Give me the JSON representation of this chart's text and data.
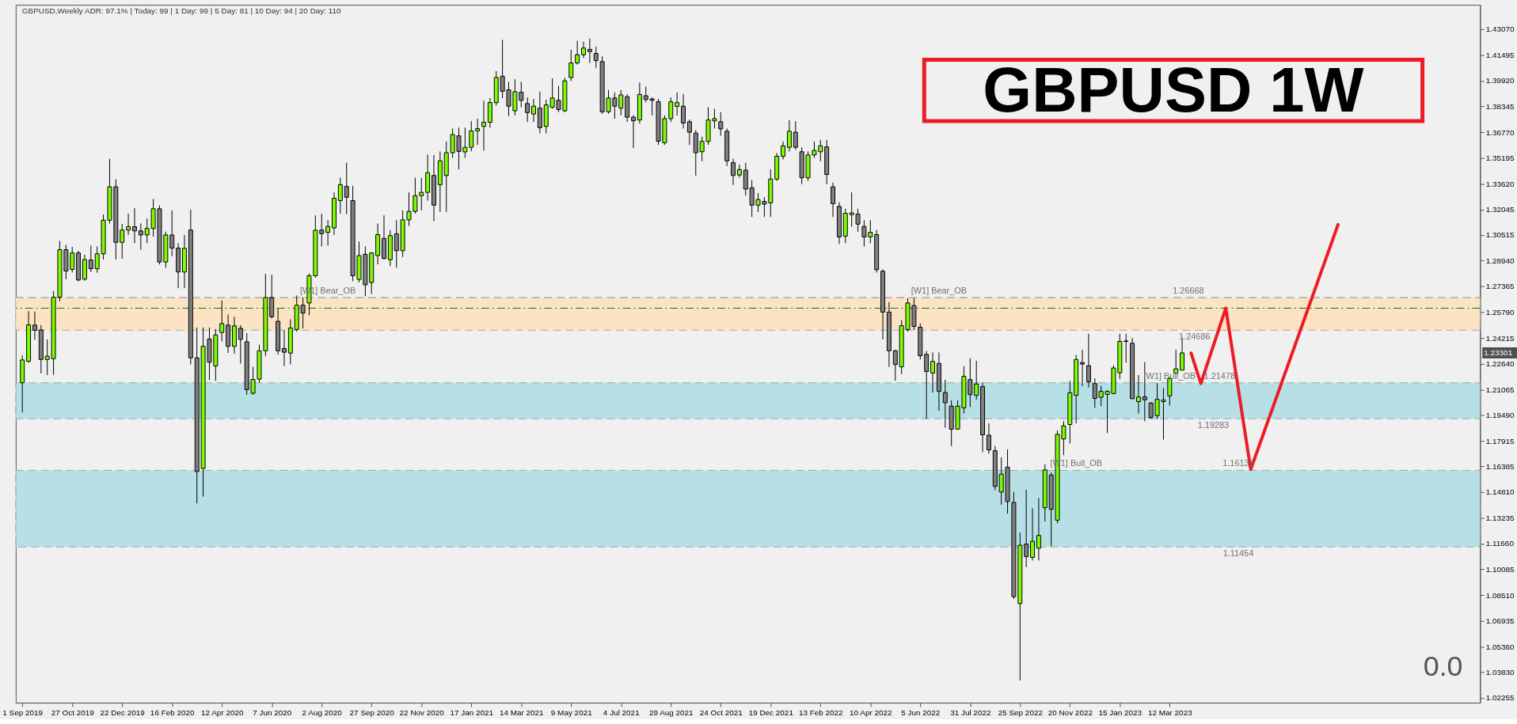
{
  "chart_data": {
    "type": "candlestick",
    "title": "GBPUSD 1W",
    "subtitle": "GBPUSD,Weekly   ADR: 97.1%   |  Today: 99   |  1 Day: 99   |  5 Day: 81   |  10 Day: 94   |  20 Day: 110",
    "x": [
      "2019-09-01",
      "2019-09-08",
      "2019-09-15",
      "2019-09-22",
      "2019-09-29",
      "2019-10-06",
      "2019-10-13",
      "2019-10-20",
      "2019-10-27",
      "2019-11-03",
      "2019-11-10",
      "2019-11-17",
      "2019-11-24",
      "2019-12-01",
      "2019-12-08",
      "2019-12-15",
      "2019-12-22",
      "2019-12-29",
      "2020-01-05",
      "2020-01-12",
      "2020-01-19",
      "2020-01-26",
      "2020-02-02",
      "2020-02-09",
      "2020-02-16",
      "2020-02-23",
      "2020-03-01",
      "2020-03-08",
      "2020-03-15",
      "2020-03-22",
      "2020-03-29",
      "2020-04-05",
      "2020-04-12",
      "2020-04-19",
      "2020-04-26",
      "2020-05-03",
      "2020-05-10",
      "2020-05-17",
      "2020-05-24",
      "2020-05-31",
      "2020-06-07",
      "2020-06-14",
      "2020-06-21",
      "2020-06-28",
      "2020-07-05",
      "2020-07-12",
      "2020-07-19",
      "2020-07-26",
      "2020-08-02",
      "2020-08-09",
      "2020-08-16",
      "2020-08-23",
      "2020-08-30",
      "2020-09-06",
      "2020-09-13",
      "2020-09-20",
      "2020-09-27",
      "2020-10-04",
      "2020-10-11",
      "2020-10-18",
      "2020-10-25",
      "2020-11-01",
      "2020-11-08",
      "2020-11-15",
      "2020-11-22",
      "2020-11-29",
      "2020-12-06",
      "2020-12-13",
      "2020-12-20",
      "2020-12-27",
      "2021-01-03",
      "2021-01-10",
      "2021-01-17",
      "2021-01-24",
      "2021-01-31",
      "2021-02-07",
      "2021-02-14",
      "2021-02-21",
      "2021-02-28",
      "2021-03-07",
      "2021-03-14",
      "2021-03-21",
      "2021-03-28",
      "2021-04-04",
      "2021-04-11",
      "2021-04-18",
      "2021-04-25",
      "2021-05-02",
      "2021-05-09",
      "2021-05-16",
      "2021-05-23",
      "2021-05-30",
      "2021-06-06",
      "2021-06-13",
      "2021-06-20",
      "2021-06-27",
      "2021-07-04",
      "2021-07-11",
      "2021-07-18",
      "2021-07-25",
      "2021-08-01",
      "2021-08-08",
      "2021-08-15",
      "2021-08-22",
      "2021-08-29",
      "2021-09-05",
      "2021-09-12",
      "2021-09-19",
      "2021-09-26",
      "2021-10-03",
      "2021-10-10",
      "2021-10-17",
      "2021-10-24",
      "2021-10-31",
      "2021-11-07",
      "2021-11-14",
      "2021-11-21",
      "2021-11-28",
      "2021-12-05",
      "2021-12-12",
      "2021-12-19",
      "2021-12-26",
      "2022-01-02",
      "2022-01-09",
      "2022-01-16",
      "2022-01-23",
      "2022-01-30",
      "2022-02-06",
      "2022-02-13",
      "2022-02-20",
      "2022-02-27",
      "2022-03-06",
      "2022-03-13",
      "2022-03-20",
      "2022-03-27",
      "2022-04-03",
      "2022-04-10",
      "2022-04-17",
      "2022-04-24",
      "2022-05-01",
      "2022-05-08",
      "2022-05-15",
      "2022-05-22",
      "2022-05-29",
      "2022-06-05",
      "2022-06-12",
      "2022-06-19",
      "2022-06-26",
      "2022-07-03",
      "2022-07-10",
      "2022-07-17",
      "2022-07-24",
      "2022-07-31",
      "2022-08-07",
      "2022-08-14",
      "2022-08-21",
      "2022-08-28",
      "2022-09-04",
      "2022-09-11",
      "2022-09-18",
      "2022-09-25",
      "2022-10-02",
      "2022-10-09",
      "2022-10-16",
      "2022-10-23",
      "2022-10-30",
      "2022-11-06",
      "2022-11-13",
      "2022-11-20",
      "2022-11-27",
      "2022-12-04",
      "2022-12-11",
      "2022-12-18",
      "2022-12-25",
      "2023-01-01",
      "2023-01-08",
      "2023-01-15",
      "2023-01-22",
      "2023-01-29",
      "2023-02-05",
      "2023-02-12",
      "2023-02-19",
      "2023-02-26",
      "2023-03-05",
      "2023-03-12",
      "2023-03-19",
      "2023-03-26"
    ],
    "ohlc": [
      [
        1.2148,
        1.2315,
        1.1967,
        1.2287
      ],
      [
        1.2279,
        1.2585,
        1.227,
        1.2501
      ],
      [
        1.25,
        1.2582,
        1.241,
        1.2468
      ],
      [
        1.247,
        1.25,
        1.2205,
        1.229
      ],
      [
        1.229,
        1.2412,
        1.2195,
        1.231
      ],
      [
        1.2295,
        1.2708,
        1.2196,
        1.267
      ],
      [
        1.267,
        1.3013,
        1.2645,
        1.296
      ],
      [
        1.296,
        1.299,
        1.278,
        1.283
      ],
      [
        1.284,
        1.2977,
        1.2821,
        1.294
      ],
      [
        1.294,
        1.2953,
        1.2768,
        1.2775
      ],
      [
        1.278,
        1.293,
        1.277,
        1.29
      ],
      [
        1.2897,
        1.2985,
        1.2823,
        1.2844
      ],
      [
        1.2844,
        1.298,
        1.282,
        1.2935
      ],
      [
        1.2935,
        1.3175,
        1.29,
        1.314
      ],
      [
        1.314,
        1.3514,
        1.312,
        1.3344
      ],
      [
        1.3344,
        1.339,
        1.29,
        1.3005
      ],
      [
        1.3005,
        1.3118,
        1.2905,
        1.308
      ],
      [
        1.308,
        1.318,
        1.305,
        1.31
      ],
      [
        1.31,
        1.3215,
        1.3,
        1.3075
      ],
      [
        1.3075,
        1.312,
        1.296,
        1.305
      ],
      [
        1.305,
        1.315,
        1.3,
        1.309
      ],
      [
        1.309,
        1.327,
        1.304,
        1.321
      ],
      [
        1.321,
        1.323,
        1.287,
        1.2885
      ],
      [
        1.2885,
        1.307,
        1.285,
        1.305
      ],
      [
        1.305,
        1.32,
        1.292,
        1.297
      ],
      [
        1.297,
        1.3,
        1.2725,
        1.2824
      ],
      [
        1.2824,
        1.305,
        1.2725,
        1.2968
      ],
      [
        1.308,
        1.3205,
        1.226,
        1.23
      ],
      [
        1.23,
        1.2485,
        1.1411,
        1.1606
      ],
      [
        1.1625,
        1.2485,
        1.1453,
        1.237
      ],
      [
        1.2415,
        1.2485,
        1.2165,
        1.2273
      ],
      [
        1.225,
        1.2475,
        1.216,
        1.244
      ],
      [
        1.2455,
        1.265,
        1.24,
        1.2509
      ],
      [
        1.25,
        1.2565,
        1.233,
        1.237
      ],
      [
        1.237,
        1.255,
        1.2325,
        1.2495
      ],
      [
        1.248,
        1.25,
        1.2265,
        1.2413
      ],
      [
        1.2398,
        1.245,
        1.2075,
        1.2106
      ],
      [
        1.2084,
        1.2245,
        1.2075,
        1.2168
      ],
      [
        1.217,
        1.238,
        1.215,
        1.2343
      ],
      [
        1.2343,
        1.2812,
        1.231,
        1.2668
      ],
      [
        1.2668,
        1.2807,
        1.254,
        1.2551
      ],
      [
        1.2523,
        1.26,
        1.232,
        1.2343
      ],
      [
        1.2357,
        1.247,
        1.225,
        1.2334
      ],
      [
        1.2329,
        1.2535,
        1.226,
        1.2482
      ],
      [
        1.2473,
        1.268,
        1.246,
        1.2621
      ],
      [
        1.2621,
        1.267,
        1.248,
        1.2573
      ],
      [
        1.2635,
        1.2815,
        1.256,
        1.2801
      ],
      [
        1.2801,
        1.317,
        1.279,
        1.3079
      ],
      [
        1.308,
        1.318,
        1.298,
        1.3058
      ],
      [
        1.3066,
        1.314,
        1.2985,
        1.3102
      ],
      [
        1.3093,
        1.331,
        1.305,
        1.3274
      ],
      [
        1.326,
        1.34,
        1.318,
        1.3357
      ],
      [
        1.3346,
        1.3491,
        1.3177,
        1.328
      ],
      [
        1.326,
        1.335,
        1.2768,
        1.2801
      ],
      [
        1.2779,
        1.301,
        1.276,
        1.2924
      ],
      [
        1.2932,
        1.298,
        1.2676,
        1.2746
      ],
      [
        1.276,
        1.2945,
        1.269,
        1.294
      ],
      [
        1.2924,
        1.312,
        1.287,
        1.3052
      ],
      [
        1.3029,
        1.317,
        1.29,
        1.2907
      ],
      [
        1.2899,
        1.308,
        1.286,
        1.3046
      ],
      [
        1.3057,
        1.314,
        1.285,
        1.2954
      ],
      [
        1.2954,
        1.32,
        1.2915,
        1.3142
      ],
      [
        1.3142,
        1.331,
        1.3105,
        1.3194
      ],
      [
        1.3194,
        1.34,
        1.318,
        1.329
      ],
      [
        1.329,
        1.3398,
        1.32,
        1.331
      ],
      [
        1.331,
        1.354,
        1.326,
        1.343
      ],
      [
        1.3413,
        1.3538,
        1.3135,
        1.3232
      ],
      [
        1.3357,
        1.356,
        1.3191,
        1.3502
      ],
      [
        1.3413,
        1.362,
        1.3191,
        1.3552
      ],
      [
        1.3552,
        1.37,
        1.352,
        1.3663
      ],
      [
        1.3655,
        1.3705,
        1.345,
        1.356
      ],
      [
        1.3557,
        1.3705,
        1.352,
        1.3585
      ],
      [
        1.3585,
        1.3745,
        1.356,
        1.3685
      ],
      [
        1.3685,
        1.376,
        1.36,
        1.3699
      ],
      [
        1.3713,
        1.387,
        1.3565,
        1.3738
      ],
      [
        1.3738,
        1.3885,
        1.3705,
        1.3858
      ],
      [
        1.3858,
        1.405,
        1.384,
        1.4011
      ],
      [
        1.4019,
        1.4241,
        1.3885,
        1.3927
      ],
      [
        1.3936,
        1.3985,
        1.3775,
        1.3836
      ],
      [
        1.3808,
        1.4,
        1.378,
        1.3924
      ],
      [
        1.3921,
        1.3985,
        1.383,
        1.3872
      ],
      [
        1.3852,
        1.389,
        1.374,
        1.3797
      ],
      [
        1.3788,
        1.388,
        1.374,
        1.3836
      ],
      [
        1.3824,
        1.3925,
        1.367,
        1.3705
      ],
      [
        1.3713,
        1.3875,
        1.367,
        1.3844
      ],
      [
        1.383,
        1.4005,
        1.382,
        1.3886
      ],
      [
        1.3872,
        1.396,
        1.38,
        1.3816
      ],
      [
        1.3808,
        1.401,
        1.38,
        1.3991
      ],
      [
        1.4011,
        1.418,
        1.399,
        1.41
      ],
      [
        1.41,
        1.4235,
        1.409,
        1.415
      ],
      [
        1.415,
        1.423,
        1.413,
        1.4191
      ],
      [
        1.4183,
        1.4249,
        1.41,
        1.4169
      ],
      [
        1.4158,
        1.42,
        1.407,
        1.4114
      ],
      [
        1.4108,
        1.414,
        1.379,
        1.3802
      ],
      [
        1.3802,
        1.3935,
        1.379,
        1.3886
      ],
      [
        1.3886,
        1.392,
        1.376,
        1.3836
      ],
      [
        1.3824,
        1.3935,
        1.378,
        1.3905
      ],
      [
        1.3894,
        1.391,
        1.374,
        1.3769
      ],
      [
        1.3769,
        1.378,
        1.358,
        1.3747
      ],
      [
        1.3752,
        1.398,
        1.373,
        1.3908
      ],
      [
        1.39,
        1.3955,
        1.386,
        1.3877
      ],
      [
        1.388,
        1.389,
        1.378,
        1.3872
      ],
      [
        1.3863,
        1.388,
        1.36,
        1.3622
      ],
      [
        1.3613,
        1.378,
        1.36,
        1.376
      ],
      [
        1.376,
        1.389,
        1.374,
        1.3863
      ],
      [
        1.3835,
        1.392,
        1.378,
        1.3858
      ],
      [
        1.3836,
        1.391,
        1.37,
        1.3733
      ],
      [
        1.3741,
        1.3755,
        1.36,
        1.3677
      ],
      [
        1.3672,
        1.369,
        1.3412,
        1.3552
      ],
      [
        1.3558,
        1.365,
        1.35,
        1.3621
      ],
      [
        1.3621,
        1.383,
        1.36,
        1.3752
      ],
      [
        1.3746,
        1.382,
        1.37,
        1.376
      ],
      [
        1.3741,
        1.38,
        1.3655,
        1.3697
      ],
      [
        1.3683,
        1.37,
        1.347,
        1.3502
      ],
      [
        1.3491,
        1.3515,
        1.3355,
        1.3413
      ],
      [
        1.3416,
        1.348,
        1.34,
        1.3449
      ],
      [
        1.3446,
        1.349,
        1.329,
        1.333
      ],
      [
        1.3338,
        1.3385,
        1.316,
        1.3232
      ],
      [
        1.3232,
        1.3305,
        1.319,
        1.3266
      ],
      [
        1.3255,
        1.328,
        1.316,
        1.3238
      ],
      [
        1.3246,
        1.345,
        1.316,
        1.3391
      ],
      [
        1.3391,
        1.355,
        1.338,
        1.353
      ],
      [
        1.353,
        1.362,
        1.351,
        1.3594
      ],
      [
        1.3585,
        1.375,
        1.356,
        1.3683
      ],
      [
        1.3677,
        1.3745,
        1.357,
        1.3585
      ],
      [
        1.3558,
        1.3585,
        1.336,
        1.3399
      ],
      [
        1.3399,
        1.356,
        1.338,
        1.3538
      ],
      [
        1.3538,
        1.362,
        1.352,
        1.3566
      ],
      [
        1.3558,
        1.363,
        1.35,
        1.3594
      ],
      [
        1.3588,
        1.363,
        1.336,
        1.3419
      ],
      [
        1.3344,
        1.337,
        1.316,
        1.3241
      ],
      [
        1.3224,
        1.325,
        1.2995,
        1.3038
      ],
      [
        1.3043,
        1.321,
        1.3,
        1.3182
      ],
      [
        1.3174,
        1.331,
        1.31,
        1.3185
      ],
      [
        1.3177,
        1.321,
        1.307,
        1.3116
      ],
      [
        1.3102,
        1.314,
        1.298,
        1.3038
      ],
      [
        1.3038,
        1.314,
        1.3,
        1.3066
      ],
      [
        1.3052,
        1.308,
        1.282,
        1.2838
      ],
      [
        1.2829,
        1.284,
        1.2412,
        1.2579
      ],
      [
        1.2579,
        1.264,
        1.2245,
        1.2343
      ],
      [
        1.2343,
        1.235,
        1.216,
        1.2259
      ],
      [
        1.2245,
        1.253,
        1.22,
        1.2496
      ],
      [
        1.2473,
        1.2665,
        1.246,
        1.2635
      ],
      [
        1.2619,
        1.2665,
        1.247,
        1.2492
      ],
      [
        1.2487,
        1.251,
        1.229,
        1.2313
      ],
      [
        1.2321,
        1.2342,
        1.1928,
        1.2217
      ],
      [
        1.2207,
        1.2333,
        1.2088,
        1.2278
      ],
      [
        1.2266,
        1.2333,
        1.1976,
        1.2095
      ],
      [
        1.2088,
        1.2167,
        1.1873,
        1.2026
      ],
      [
        1.2005,
        1.204,
        1.1761,
        1.1864
      ],
      [
        1.1865,
        1.204,
        1.186,
        1.2005
      ],
      [
        1.1995,
        1.2249,
        1.196,
        1.2187
      ],
      [
        1.2167,
        1.2297,
        1.2,
        1.2075
      ],
      [
        1.2071,
        1.2282,
        1.2044,
        1.214
      ],
      [
        1.2124,
        1.2151,
        1.1724,
        1.183
      ],
      [
        1.1828,
        1.19,
        1.1714,
        1.1738
      ],
      [
        1.1733,
        1.1762,
        1.1492,
        1.1515
      ],
      [
        1.1481,
        1.1693,
        1.1404,
        1.159
      ],
      [
        1.1633,
        1.1741,
        1.1349,
        1.1423
      ],
      [
        1.1417,
        1.1481,
        1.0828,
        1.0842
      ],
      [
        1.08,
        1.1234,
        1.033,
        1.1156
      ],
      [
        1.1163,
        1.1495,
        1.1022,
        1.1087
      ],
      [
        1.1082,
        1.1381,
        1.1063,
        1.118
      ],
      [
        1.1138,
        1.1444,
        1.1063,
        1.1216
      ],
      [
        1.1385,
        1.165,
        1.1301,
        1.1616
      ],
      [
        1.1585,
        1.16,
        1.115,
        1.1375
      ],
      [
        1.1309,
        1.1857,
        1.129,
        1.1833
      ],
      [
        1.1804,
        1.1913,
        1.1706,
        1.1885
      ],
      [
        1.1893,
        1.2159,
        1.1777,
        1.2087
      ],
      [
        1.2071,
        1.2318,
        1.19,
        1.229
      ],
      [
        1.2271,
        1.2349,
        1.2127,
        1.2262
      ],
      [
        1.2252,
        1.2447,
        1.2119,
        1.2154
      ],
      [
        1.2143,
        1.2175,
        1.1995,
        1.2052
      ],
      [
        1.2059,
        1.213,
        1.2005,
        1.2095
      ],
      [
        1.2077,
        1.2103,
        1.1841,
        1.2095
      ],
      [
        1.2082,
        1.2254,
        1.2079,
        1.2238
      ],
      [
        1.2209,
        1.2447,
        1.217,
        1.24
      ],
      [
        1.2403,
        1.2447,
        1.227,
        1.24
      ],
      [
        1.2389,
        1.2421,
        1.2047,
        1.2051
      ],
      [
        1.2033,
        1.2195,
        1.196,
        1.2061
      ],
      [
        1.2062,
        1.2274,
        1.1913,
        1.2044
      ],
      [
        1.2024,
        1.203,
        1.1928,
        1.1936
      ],
      [
        1.1947,
        1.2147,
        1.1925,
        1.2047
      ],
      [
        1.2033,
        1.2116,
        1.1801,
        1.2042
      ],
      [
        1.2068,
        1.218,
        1.2008,
        1.2174
      ],
      [
        1.2205,
        1.2349,
        1.2205,
        1.2233
      ],
      [
        1.2225,
        1.2424,
        1.2225,
        1.23301
      ]
    ],
    "colors": [
      "#7cfc00",
      "#7cfc00",
      "#808080",
      "#808080",
      "#7cfc00",
      "#7cfc00",
      "#7cfc00",
      "#808080",
      "#7cfc00",
      "#808080",
      "#7cfc00",
      "#808080",
      "#7cfc00",
      "#7cfc00",
      "#7cfc00",
      "#808080",
      "#7cfc00",
      "#7cfc00",
      "#808080",
      "#808080",
      "#7cfc00",
      "#7cfc00",
      "#808080",
      "#7cfc00",
      "#808080",
      "#808080",
      "#7cfc00",
      "#808080",
      "#808080",
      "#7cfc00",
      "#808080",
      "#7cfc00",
      "#7cfc00",
      "#808080",
      "#7cfc00",
      "#808080",
      "#808080",
      "#7cfc00",
      "#7cfc00",
      "#7cfc00",
      "#808080",
      "#808080",
      "#808080",
      "#7cfc00",
      "#7cfc00",
      "#808080",
      "#7cfc00",
      "#7cfc00",
      "#808080",
      "#7cfc00",
      "#7cfc00",
      "#7cfc00",
      "#808080",
      "#808080",
      "#7cfc00",
      "#808080",
      "#7cfc00",
      "#7cfc00",
      "#808080",
      "#7cfc00",
      "#808080",
      "#7cfc00",
      "#7cfc00",
      "#7cfc00",
      "#7cfc00",
      "#7cfc00",
      "#808080",
      "#7cfc00",
      "#7cfc00",
      "#7cfc00",
      "#808080",
      "#7cfc00",
      "#7cfc00",
      "#7cfc00",
      "#7cfc00",
      "#7cfc00",
      "#7cfc00",
      "#808080",
      "#808080",
      "#7cfc00",
      "#808080",
      "#808080",
      "#7cfc00",
      "#808080",
      "#7cfc00",
      "#7cfc00",
      "#808080",
      "#7cfc00",
      "#7cfc00",
      "#7cfc00",
      "#7cfc00",
      "#808080",
      "#808080",
      "#808080",
      "#7cfc00",
      "#808080",
      "#7cfc00",
      "#808080",
      "#808080",
      "#7cfc00",
      "#808080",
      "#808080",
      "#808080",
      "#7cfc00",
      "#7cfc00",
      "#7cfc00",
      "#808080",
      "#808080",
      "#808080",
      "#7cfc00",
      "#7cfc00",
      "#7cfc00",
      "#808080",
      "#808080",
      "#808080",
      "#7cfc00",
      "#808080",
      "#808080",
      "#7cfc00",
      "#808080",
      "#7cfc00",
      "#7cfc00",
      "#7cfc00",
      "#7cfc00",
      "#808080",
      "#808080",
      "#7cfc00",
      "#7cfc00",
      "#7cfc00",
      "#808080",
      "#808080",
      "#808080",
      "#7cfc00",
      "#7cfc00",
      "#808080",
      "#808080",
      "#7cfc00",
      "#808080",
      "#808080",
      "#808080",
      "#808080",
      "#7cfc00",
      "#7cfc00",
      "#808080",
      "#808080",
      "#808080",
      "#7cfc00",
      "#808080",
      "#808080",
      "#808080",
      "#7cfc00",
      "#7cfc00",
      "#808080",
      "#7cfc00",
      "#808080",
      "#808080",
      "#808080",
      "#7cfc00",
      "#808080",
      "#808080",
      "#7cfc00",
      "#808080",
      "#7cfc00",
      "#7cfc00",
      "#7cfc00",
      "#808080",
      "#7cfc00",
      "#7cfc00",
      "#7cfc00",
      "#7cfc00",
      "#808080",
      "#808080",
      "#808080",
      "#7cfc00",
      "#7cfc00",
      "#7cfc00",
      "#7cfc00",
      "#808080",
      "#808080",
      "#7cfc00",
      "#808080",
      "#808080",
      "#7cfc00",
      "#7cfc00",
      "#7cfc00",
      "#7cfc00",
      "#7cfc00"
    ],
    "series": [
      {
        "type": "line",
        "color": "#ed1c24",
        "x": [
          "2023-04-05",
          "2023-04-16",
          "2023-05-14",
          "2023-06-11",
          "2023-09-17"
        ],
        "values": [
          1.2329,
          1.2143,
          1.2603,
          1.1619,
          1.3113
        ]
      }
    ],
    "xlim": [
      "2019-08-29",
      "2024-02-19"
    ],
    "xticks": [
      {
        "value": "2019-09-01",
        "label": "1 Sep 2019"
      },
      {
        "value": "2019-10-27",
        "label": "27 Oct 2019"
      },
      {
        "value": "2019-12-22",
        "label": "22 Dec 2019"
      },
      {
        "value": "2020-02-16",
        "label": "16 Feb 2020"
      },
      {
        "value": "2020-04-12",
        "label": "12 Apr 2020"
      },
      {
        "value": "2020-06-07",
        "label": "7 Jun 2020"
      },
      {
        "value": "2020-08-02",
        "label": "2 Aug 2020"
      },
      {
        "value": "2020-09-27",
        "label": "27 Sep 2020"
      },
      {
        "value": "2020-11-22",
        "label": "22 Nov 2020"
      },
      {
        "value": "2021-01-17",
        "label": "17 Jan 2021"
      },
      {
        "value": "2021-03-14",
        "label": "14 Mar 2021"
      },
      {
        "value": "2021-05-09",
        "label": "9 May 2021"
      },
      {
        "value": "2021-07-04",
        "label": "4 Jul 2021"
      },
      {
        "value": "2021-08-29",
        "label": "29 Aug 2021"
      },
      {
        "value": "2021-10-24",
        "label": "24 Oct 2021"
      },
      {
        "value": "2021-12-19",
        "label": "19 Dec 2021"
      },
      {
        "value": "2022-02-13",
        "label": "13 Feb 2022"
      },
      {
        "value": "2022-04-10",
        "label": "10 Apr 2022"
      },
      {
        "value": "2022-06-05",
        "label": "5 Jun 2022"
      },
      {
        "value": "2022-07-31",
        "label": "31 Jul 2022"
      },
      {
        "value": "2022-09-25",
        "label": "25 Sep 2022"
      },
      {
        "value": "2022-11-20",
        "label": "20 Nov 2022"
      },
      {
        "value": "2023-01-15",
        "label": "15 Jan 2023"
      },
      {
        "value": "2023-03-12",
        "label": "12 Mar 2023"
      }
    ],
    "ylim": [
      1.0195,
      1.4455
    ],
    "yticks": [
      {
        "value": 1.4307,
        "label": "1.43070"
      },
      1.41495,
      {
        "value": 1.3992,
        "label": "1.39920"
      },
      1.38345,
      {
        "value": 1.3677,
        "label": "1.36770"
      },
      1.35195,
      {
        "value": 1.3362,
        "label": "1.33620"
      },
      1.32045,
      1.30515,
      {
        "value": 1.2894,
        "label": "1.28940"
      },
      1.27365,
      {
        "value": 1.2579,
        "label": "1.25790"
      },
      1.24215,
      {
        "value": 1.2264,
        "label": "1.22640"
      },
      1.21065,
      {
        "value": 1.1949,
        "label": "1.19490"
      },
      1.17915,
      1.16385,
      {
        "value": 1.1481,
        "label": "1.14810"
      },
      1.13235,
      {
        "value": 1.1166,
        "label": "1.11660"
      },
      1.10085,
      {
        "value": 1.0851,
        "label": "1.08510"
      },
      1.06935,
      {
        "value": 1.0536,
        "label": "1.05360"
      },
      {
        "value": 1.0383,
        "label": "1.03830"
      },
      1.02255
    ],
    "bands": [
      {
        "axis": "y",
        "from": 1.2482,
        "to": 1.2668,
        "color": "#fde3c4"
      },
      {
        "axis": "y",
        "from": 1.24686,
        "to": 1.26668,
        "color": "#fde3c4"
      },
      {
        "axis": "y",
        "from": 1.19283,
        "to": 1.21478,
        "color": "#b0dfe5"
      },
      {
        "axis": "y",
        "from": 1.11454,
        "to": 1.16133,
        "color": "#b0dfe5"
      }
    ],
    "ref_lines": [
      {
        "axis": "y",
        "value": 1.2603,
        "color": "#008000",
        "line_style": "dashed"
      }
    ],
    "annotations": [
      {
        "text": "[W1] Bear_OB",
        "x": "2020-08-09",
        "y": 1.2668
      },
      {
        "text": "[W1] Bear_OB",
        "x": "2022-06-26",
        "y": 1.26668
      },
      {
        "text": "1.26668",
        "x": "2023-04-02",
        "y": 1.26668
      },
      {
        "text": "1.24686",
        "x": "2023-04-09",
        "y": 1.24686
      },
      {
        "text": "[W1] Bull_OB",
        "x": "2023-03-12",
        "y": 1.21478
      },
      {
        "text": "1.21478",
        "x": "2023-05-07",
        "y": 1.21478
      },
      {
        "text": "1.19283",
        "x": "2023-04-30",
        "y": 1.19283
      },
      {
        "text": "[W1] Bull_OB",
        "x": "2022-11-27",
        "y": 1.16133
      },
      {
        "text": "1.16133",
        "x": "2023-05-28",
        "y": 1.16133
      },
      {
        "text": "1.11454",
        "x": "2023-05-28",
        "y": 1.11454
      },
      "1.23301",
      "0.0"
    ]
  }
}
